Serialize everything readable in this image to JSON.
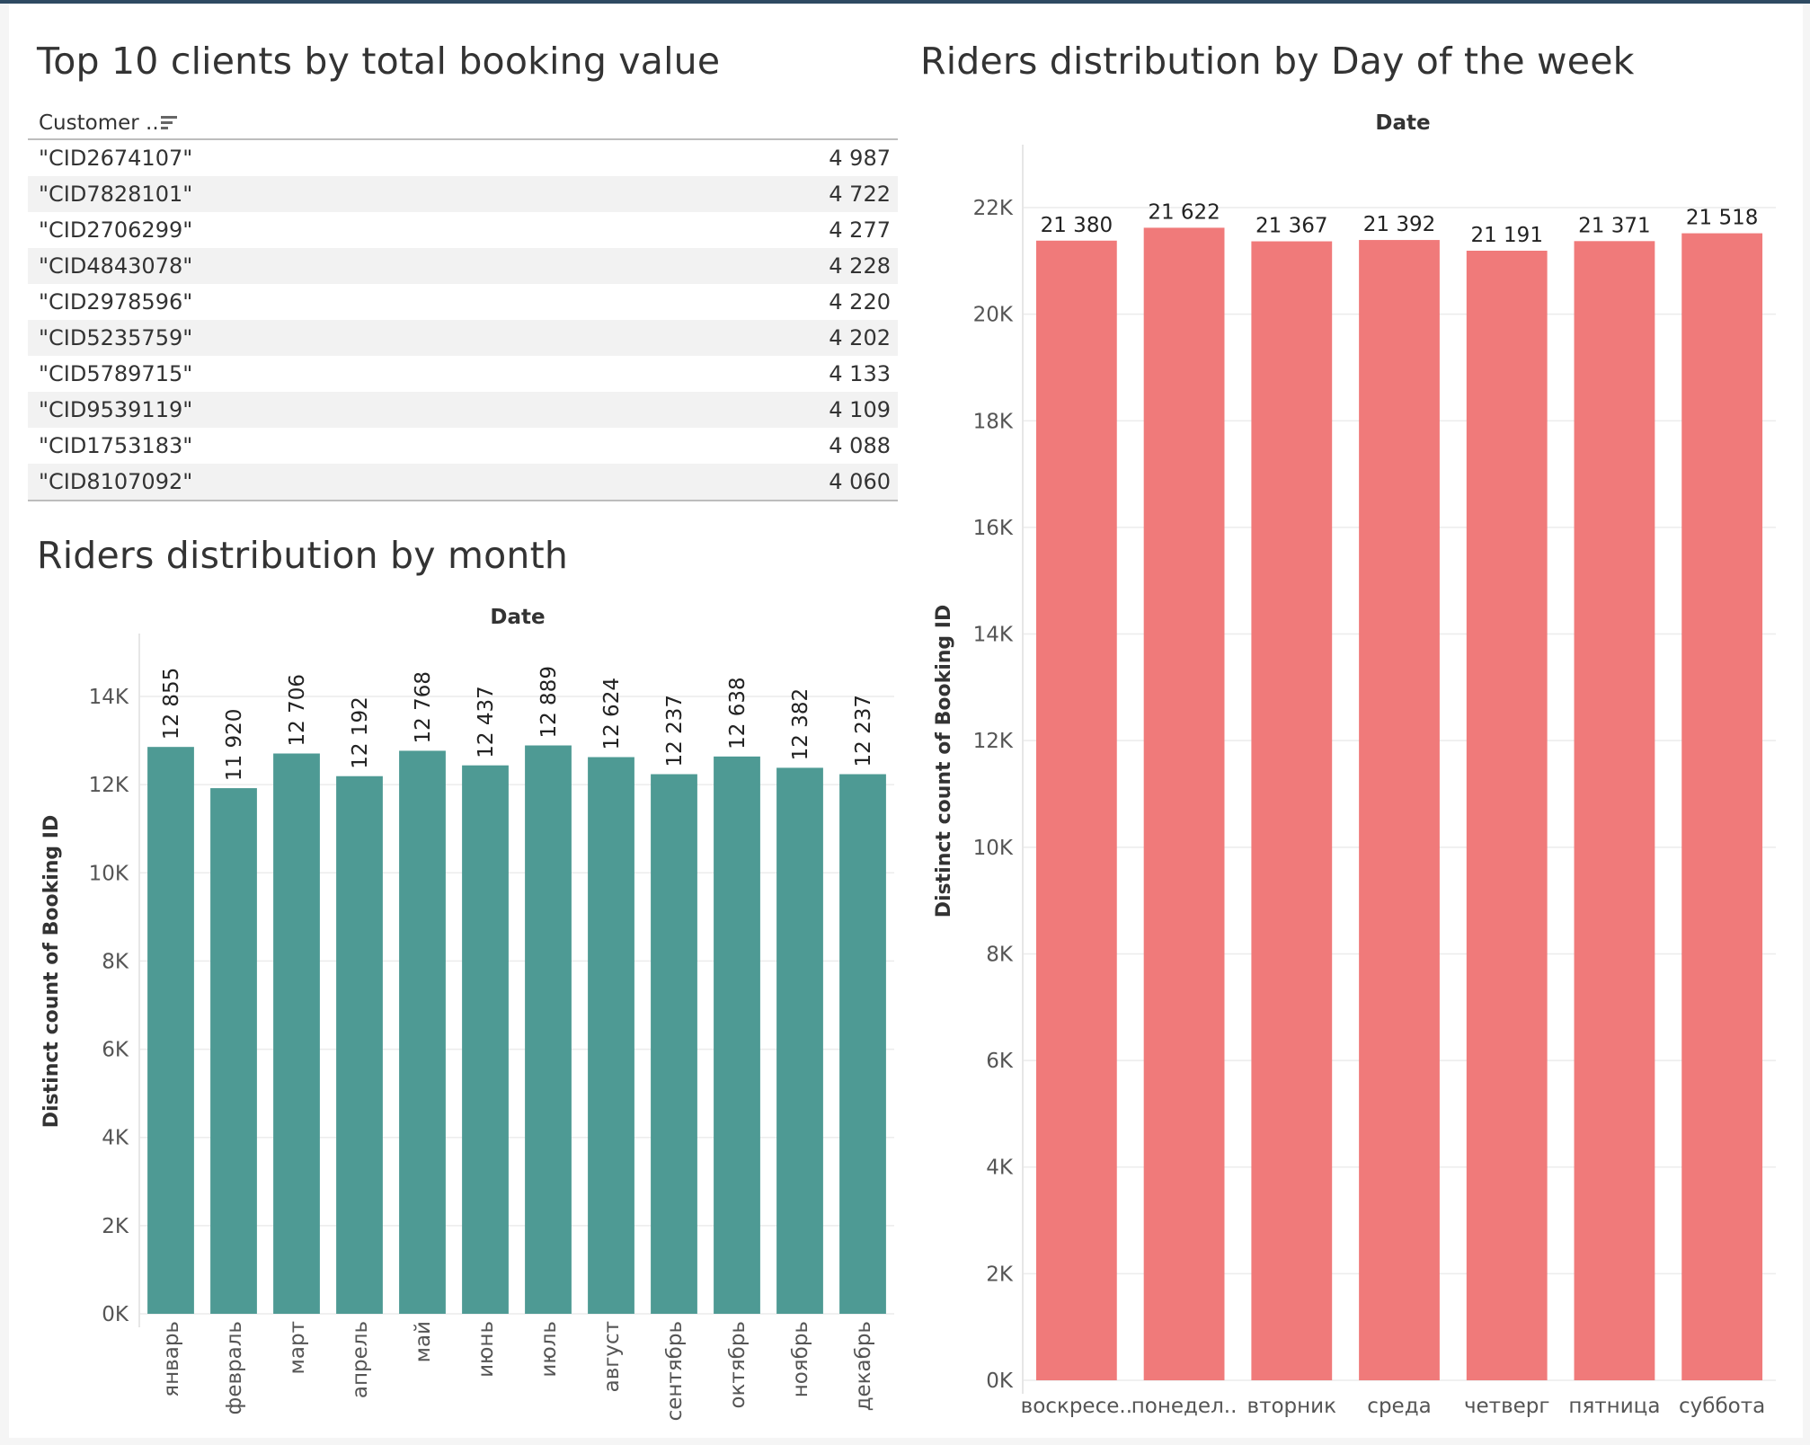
{
  "table": {
    "title": "Top 10 clients by total booking value",
    "column_header": "Customer ..",
    "rows": [
      {
        "id": "\"CID2674107\"",
        "value": "4 987"
      },
      {
        "id": "\"CID7828101\"",
        "value": "4 722"
      },
      {
        "id": "\"CID2706299\"",
        "value": "4 277"
      },
      {
        "id": "\"CID4843078\"",
        "value": "4 228"
      },
      {
        "id": "\"CID2978596\"",
        "value": "4 220"
      },
      {
        "id": "\"CID5235759\"",
        "value": "4 202"
      },
      {
        "id": "\"CID5789715\"",
        "value": "4 133"
      },
      {
        "id": "\"CID9539119\"",
        "value": "4 109"
      },
      {
        "id": "\"CID1753183\"",
        "value": "4 088"
      },
      {
        "id": "\"CID8107092\"",
        "value": "4 060"
      }
    ]
  },
  "chart_data": [
    {
      "type": "bar",
      "title": "Riders distribution by month",
      "column_header": "Date",
      "ylabel": "Distinct count of Booking ID",
      "xlabel": "",
      "categories": [
        "январь",
        "февраль",
        "март",
        "апрель",
        "май",
        "июнь",
        "июль",
        "август",
        "сентябрь",
        "октябрь",
        "ноябрь",
        "декабрь"
      ],
      "values": [
        12855,
        11920,
        12706,
        12192,
        12768,
        12437,
        12889,
        12624,
        12237,
        12638,
        12382,
        12237
      ],
      "value_labels": [
        "12 855",
        "11 920",
        "12 706",
        "12 192",
        "12 768",
        "12 437",
        "12 889",
        "12 624",
        "12 237",
        "12 638",
        "12 382",
        "12 237"
      ],
      "ylim": [
        0,
        14000
      ],
      "yticks": [
        0,
        2000,
        4000,
        6000,
        8000,
        10000,
        12000,
        14000
      ],
      "ytick_labels": [
        "0K",
        "2K",
        "4K",
        "6K",
        "8K",
        "10K",
        "12K",
        "14K"
      ],
      "bar_color": "#4e9a94",
      "grid": true,
      "legend": "none"
    },
    {
      "type": "bar",
      "title": "Riders distribution by Day of the week",
      "column_header": "Date",
      "ylabel": "Distinct count of Booking ID",
      "xlabel": "",
      "categories": [
        "воскресе..",
        "понедел..",
        "вторник",
        "среда",
        "четверг",
        "пятница",
        "суббота"
      ],
      "values": [
        21380,
        21622,
        21367,
        21392,
        21191,
        21371,
        21518
      ],
      "value_labels": [
        "21 380",
        "21 622",
        "21 367",
        "21 392",
        "21 191",
        "21 371",
        "21 518"
      ],
      "ylim": [
        0,
        22000
      ],
      "yticks": [
        0,
        2000,
        4000,
        6000,
        8000,
        10000,
        12000,
        14000,
        16000,
        18000,
        20000,
        22000
      ],
      "ytick_labels": [
        "0K",
        "2K",
        "4K",
        "6K",
        "8K",
        "10K",
        "12K",
        "14K",
        "16K",
        "18K",
        "20K",
        "22K"
      ],
      "bar_color": "#f07a7a",
      "grid": true,
      "legend": "none"
    }
  ]
}
